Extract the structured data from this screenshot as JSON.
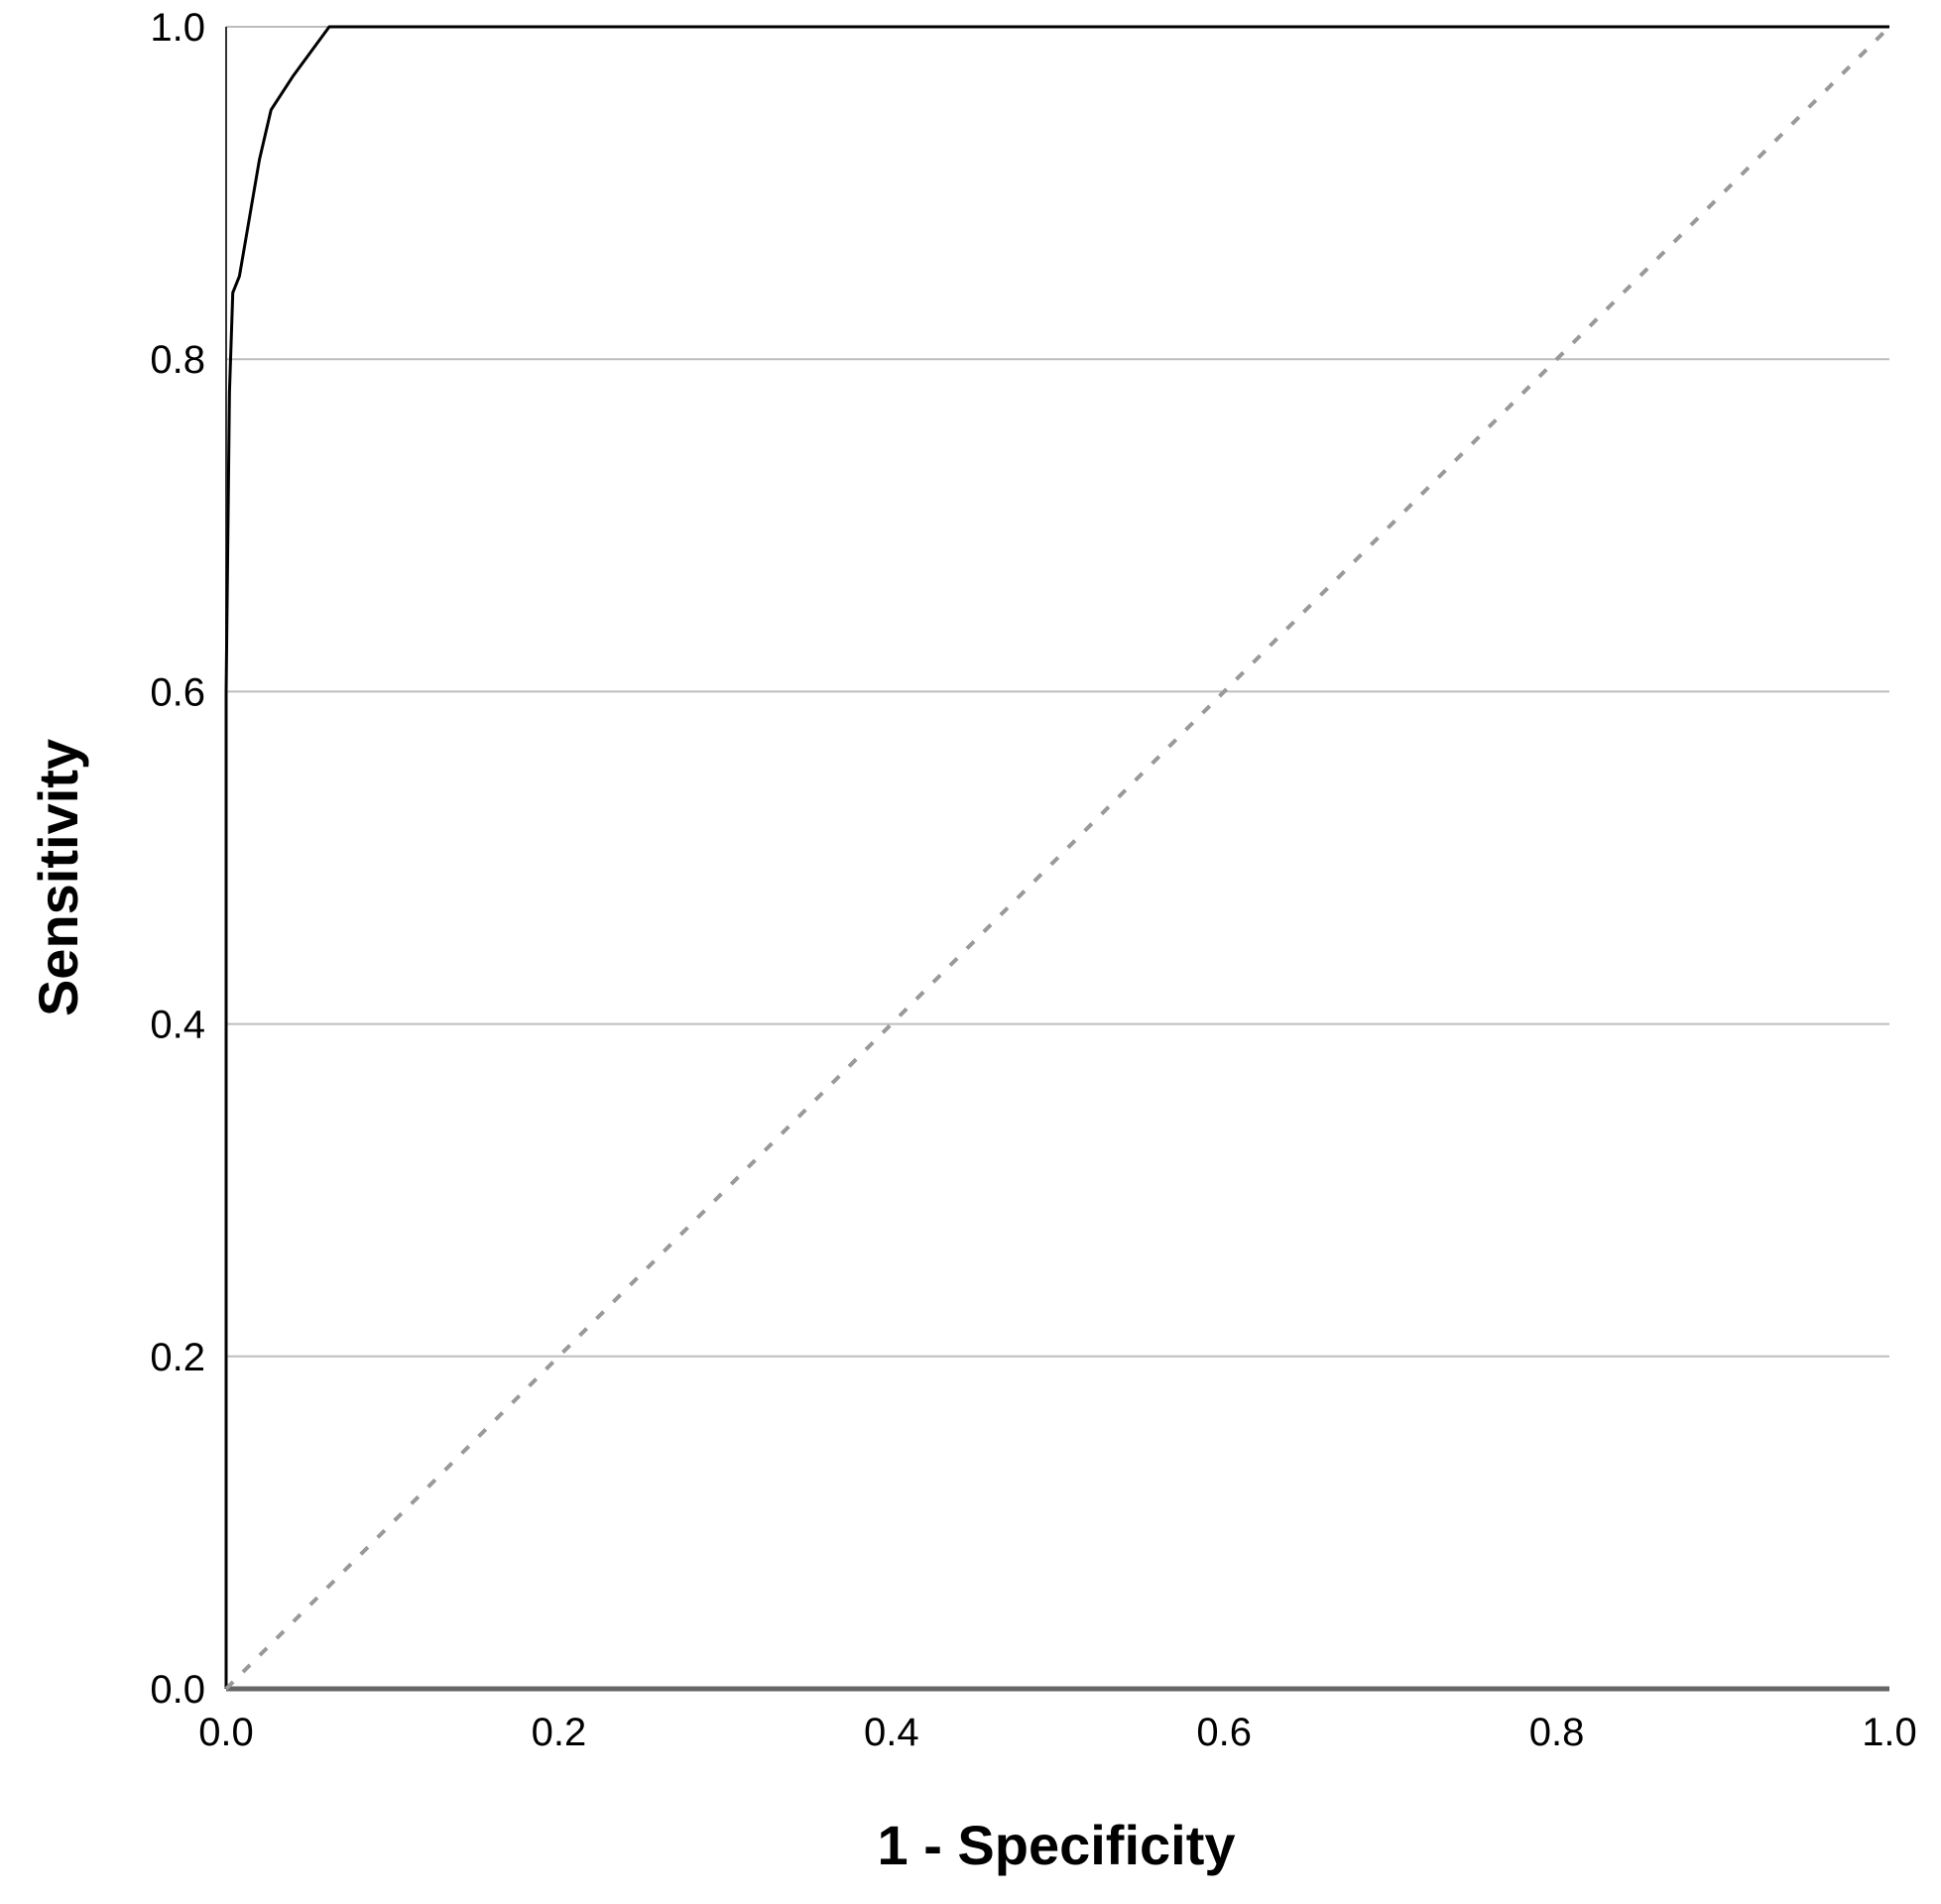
{
  "chart_data": {
    "type": "line",
    "title": "",
    "xlabel": "1 - Specificity",
    "ylabel": "Sensitivity",
    "xlim": [
      0.0,
      1.0
    ],
    "ylim": [
      0.0,
      1.0
    ],
    "x_ticks": [
      "0.0",
      "0.2",
      "0.4",
      "0.6",
      "0.8",
      "1.0"
    ],
    "y_ticks": [
      "0.0",
      "0.2",
      "0.4",
      "0.6",
      "0.8",
      "1.0"
    ],
    "grid": "horizontal",
    "legend": "none",
    "series": [
      {
        "x": [
          0.0,
          0.0,
          0.002,
          0.004,
          0.008,
          0.02,
          0.027,
          0.04,
          0.062,
          1.0
        ],
        "y": [
          0.0,
          0.6,
          0.78,
          0.84,
          0.85,
          0.92,
          0.95,
          0.97,
          1.0,
          1.0
        ],
        "color": "#000000",
        "style": "solid"
      },
      {
        "x": [
          0.0,
          1.0
        ],
        "y": [
          0.0,
          1.0
        ],
        "color": "#999999",
        "style": "dotted"
      }
    ]
  }
}
